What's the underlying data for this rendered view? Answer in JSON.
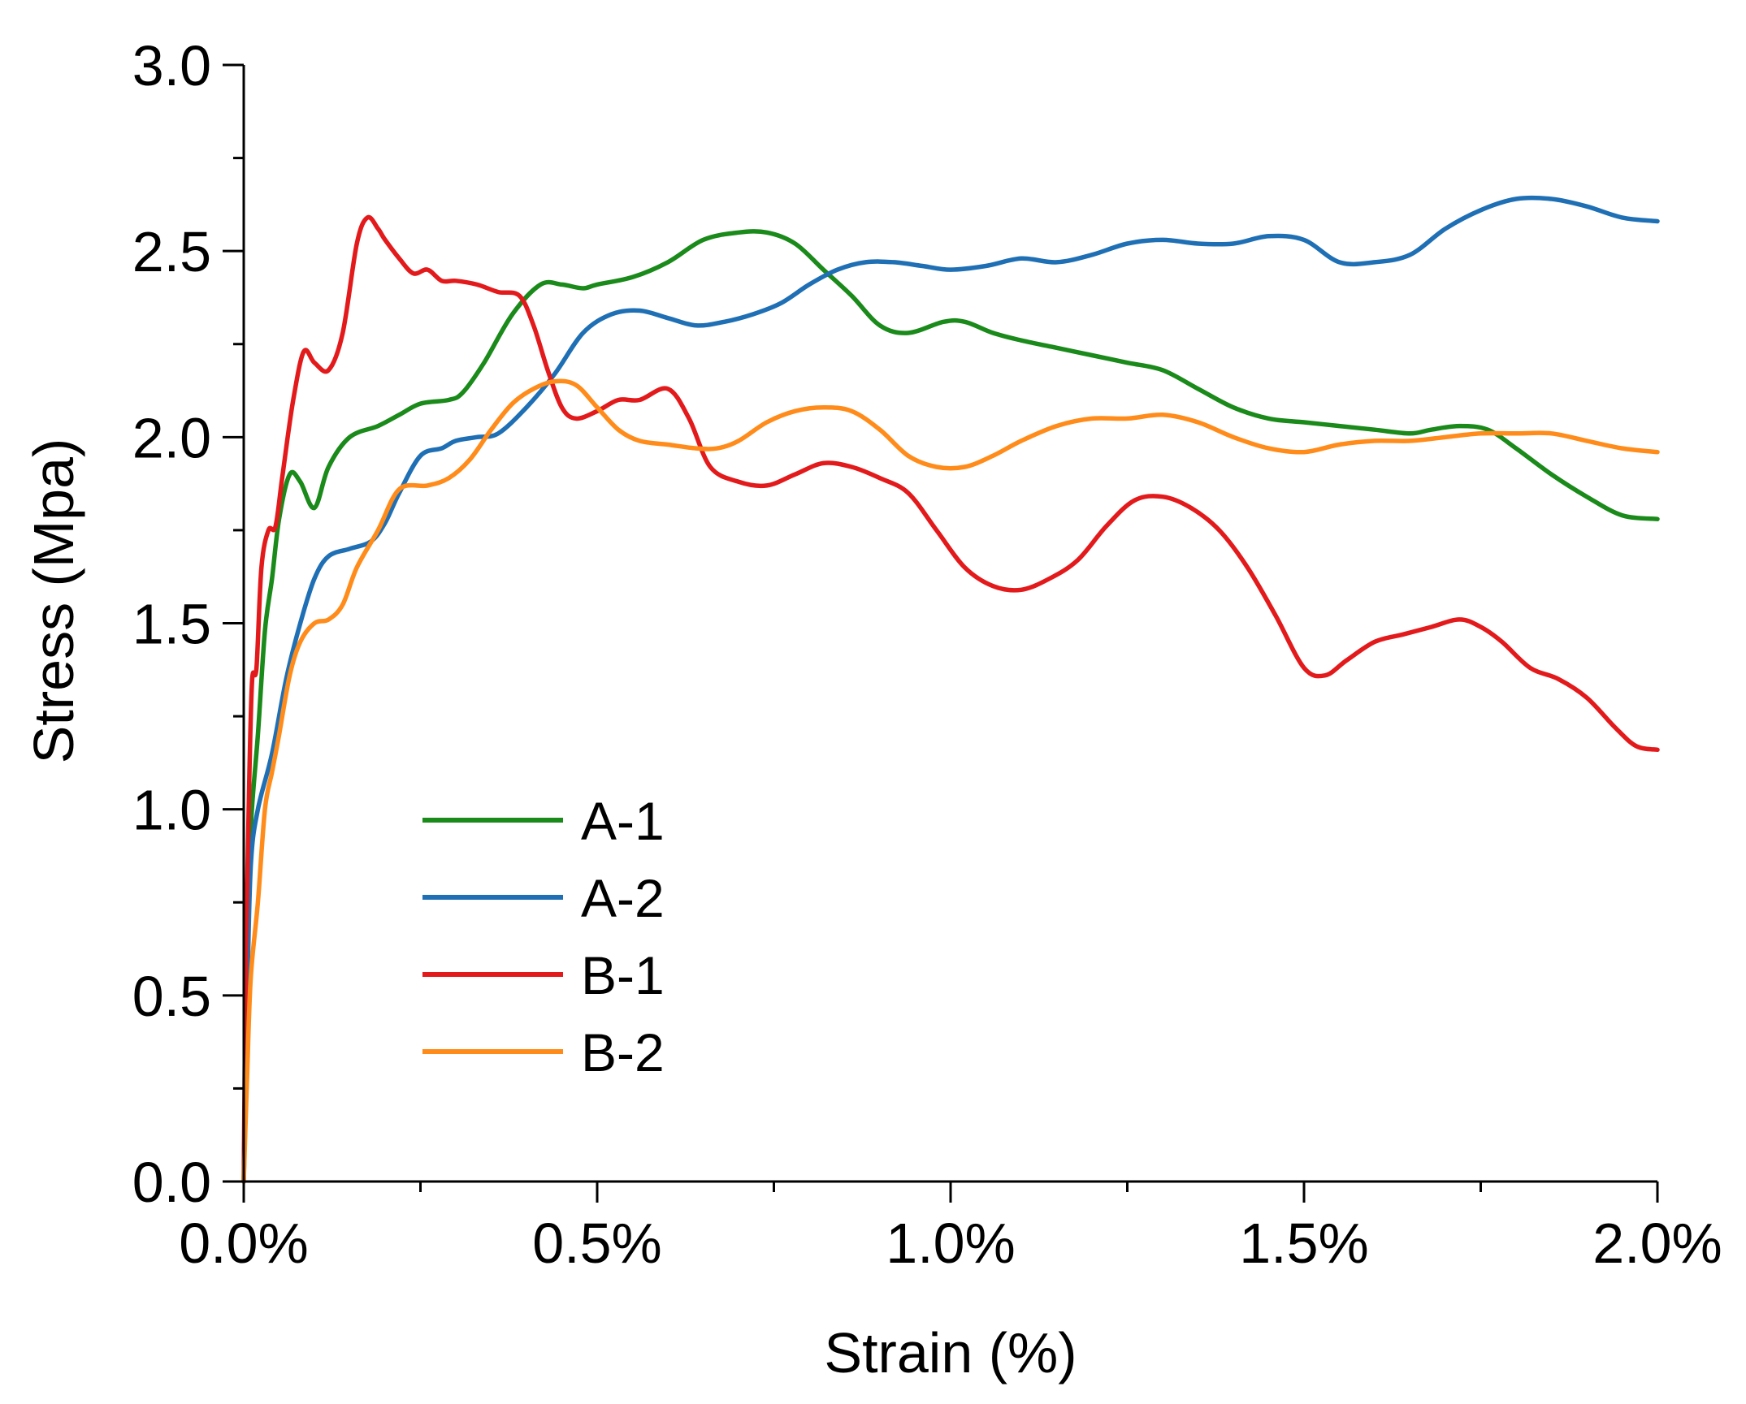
{
  "chart_data": {
    "type": "line",
    "title": "",
    "xlabel": "Strain (%)",
    "ylabel": "Stress (Mpa)",
    "xlim": [
      0,
      2.0
    ],
    "ylim": [
      0,
      3.0
    ],
    "x_ticks": [
      0,
      0.5,
      1.0,
      1.5,
      2.0
    ],
    "x_tick_labels": [
      "0.0%",
      "0.5%",
      "1.0%",
      "1.5%",
      "2.0%"
    ],
    "x_minor_ticks": [
      0.25,
      0.75,
      1.25,
      1.75
    ],
    "y_ticks": [
      0,
      0.5,
      1.0,
      1.5,
      2.0,
      2.5,
      3.0
    ],
    "y_tick_labels": [
      "0.0",
      "0.5",
      "1.0",
      "1.5",
      "2.0",
      "2.5",
      "3.0"
    ],
    "y_minor_ticks": [
      0.25,
      0.75,
      1.25,
      1.75,
      2.25,
      2.75
    ],
    "grid": false,
    "legend": {
      "position": "lower-left",
      "entries": [
        "A-1",
        "A-2",
        "B-1",
        "B-2"
      ]
    },
    "series": [
      {
        "name": "A-1",
        "color": "#1a8a1a",
        "points": [
          [
            0,
            0
          ],
          [
            0.005,
            0.6
          ],
          [
            0.01,
            0.95
          ],
          [
            0.02,
            1.2
          ],
          [
            0.03,
            1.48
          ],
          [
            0.04,
            1.62
          ],
          [
            0.05,
            1.78
          ],
          [
            0.065,
            1.9
          ],
          [
            0.08,
            1.88
          ],
          [
            0.1,
            1.81
          ],
          [
            0.12,
            1.92
          ],
          [
            0.15,
            2.0
          ],
          [
            0.19,
            2.03
          ],
          [
            0.22,
            2.06
          ],
          [
            0.25,
            2.09
          ],
          [
            0.29,
            2.1
          ],
          [
            0.31,
            2.12
          ],
          [
            0.34,
            2.2
          ],
          [
            0.38,
            2.33
          ],
          [
            0.42,
            2.41
          ],
          [
            0.45,
            2.41
          ],
          [
            0.48,
            2.4
          ],
          [
            0.5,
            2.41
          ],
          [
            0.55,
            2.43
          ],
          [
            0.6,
            2.47
          ],
          [
            0.65,
            2.53
          ],
          [
            0.7,
            2.55
          ],
          [
            0.74,
            2.55
          ],
          [
            0.78,
            2.52
          ],
          [
            0.82,
            2.45
          ],
          [
            0.86,
            2.38
          ],
          [
            0.9,
            2.3
          ],
          [
            0.94,
            2.28
          ],
          [
            0.99,
            2.31
          ],
          [
            1.02,
            2.31
          ],
          [
            1.06,
            2.28
          ],
          [
            1.1,
            2.26
          ],
          [
            1.15,
            2.24
          ],
          [
            1.2,
            2.22
          ],
          [
            1.25,
            2.2
          ],
          [
            1.3,
            2.18
          ],
          [
            1.35,
            2.13
          ],
          [
            1.4,
            2.08
          ],
          [
            1.45,
            2.05
          ],
          [
            1.5,
            2.04
          ],
          [
            1.55,
            2.03
          ],
          [
            1.6,
            2.02
          ],
          [
            1.65,
            2.01
          ],
          [
            1.68,
            2.02
          ],
          [
            1.72,
            2.03
          ],
          [
            1.76,
            2.02
          ],
          [
            1.8,
            1.97
          ],
          [
            1.85,
            1.9
          ],
          [
            1.9,
            1.84
          ],
          [
            1.95,
            1.79
          ],
          [
            2.0,
            1.78
          ]
        ]
      },
      {
        "name": "A-2",
        "color": "#1f6fb5",
        "points": [
          [
            0,
            0
          ],
          [
            0.005,
            0.5
          ],
          [
            0.01,
            0.85
          ],
          [
            0.02,
            1.0
          ],
          [
            0.04,
            1.15
          ],
          [
            0.06,
            1.35
          ],
          [
            0.08,
            1.5
          ],
          [
            0.1,
            1.62
          ],
          [
            0.12,
            1.68
          ],
          [
            0.15,
            1.7
          ],
          [
            0.18,
            1.72
          ],
          [
            0.2,
            1.77
          ],
          [
            0.22,
            1.85
          ],
          [
            0.25,
            1.95
          ],
          [
            0.28,
            1.97
          ],
          [
            0.3,
            1.99
          ],
          [
            0.33,
            2.0
          ],
          [
            0.36,
            2.01
          ],
          [
            0.4,
            2.08
          ],
          [
            0.44,
            2.17
          ],
          [
            0.48,
            2.28
          ],
          [
            0.52,
            2.33
          ],
          [
            0.56,
            2.34
          ],
          [
            0.6,
            2.32
          ],
          [
            0.64,
            2.3
          ],
          [
            0.68,
            2.31
          ],
          [
            0.72,
            2.33
          ],
          [
            0.76,
            2.36
          ],
          [
            0.8,
            2.41
          ],
          [
            0.84,
            2.45
          ],
          [
            0.88,
            2.47
          ],
          [
            0.92,
            2.47
          ],
          [
            0.96,
            2.46
          ],
          [
            1.0,
            2.45
          ],
          [
            1.05,
            2.46
          ],
          [
            1.1,
            2.48
          ],
          [
            1.15,
            2.47
          ],
          [
            1.2,
            2.49
          ],
          [
            1.25,
            2.52
          ],
          [
            1.3,
            2.53
          ],
          [
            1.35,
            2.52
          ],
          [
            1.4,
            2.52
          ],
          [
            1.45,
            2.54
          ],
          [
            1.5,
            2.53
          ],
          [
            1.55,
            2.47
          ],
          [
            1.6,
            2.47
          ],
          [
            1.65,
            2.49
          ],
          [
            1.7,
            2.56
          ],
          [
            1.75,
            2.61
          ],
          [
            1.8,
            2.64
          ],
          [
            1.85,
            2.64
          ],
          [
            1.9,
            2.62
          ],
          [
            1.95,
            2.59
          ],
          [
            2.0,
            2.58
          ]
        ]
      },
      {
        "name": "B-1",
        "color": "#e31a1c",
        "points": [
          [
            0,
            0
          ],
          [
            0.003,
            0.6
          ],
          [
            0.008,
            1.1
          ],
          [
            0.012,
            1.35
          ],
          [
            0.018,
            1.38
          ],
          [
            0.025,
            1.65
          ],
          [
            0.035,
            1.75
          ],
          [
            0.045,
            1.76
          ],
          [
            0.055,
            1.9
          ],
          [
            0.07,
            2.1
          ],
          [
            0.085,
            2.23
          ],
          [
            0.1,
            2.2
          ],
          [
            0.12,
            2.18
          ],
          [
            0.14,
            2.28
          ],
          [
            0.16,
            2.52
          ],
          [
            0.175,
            2.59
          ],
          [
            0.19,
            2.56
          ],
          [
            0.2,
            2.53
          ],
          [
            0.22,
            2.48
          ],
          [
            0.24,
            2.44
          ],
          [
            0.26,
            2.45
          ],
          [
            0.28,
            2.42
          ],
          [
            0.3,
            2.42
          ],
          [
            0.33,
            2.41
          ],
          [
            0.36,
            2.39
          ],
          [
            0.39,
            2.38
          ],
          [
            0.41,
            2.3
          ],
          [
            0.43,
            2.18
          ],
          [
            0.45,
            2.08
          ],
          [
            0.47,
            2.05
          ],
          [
            0.5,
            2.07
          ],
          [
            0.53,
            2.1
          ],
          [
            0.56,
            2.1
          ],
          [
            0.6,
            2.13
          ],
          [
            0.63,
            2.05
          ],
          [
            0.66,
            1.92
          ],
          [
            0.7,
            1.88
          ],
          [
            0.74,
            1.87
          ],
          [
            0.78,
            1.9
          ],
          [
            0.82,
            1.93
          ],
          [
            0.86,
            1.92
          ],
          [
            0.9,
            1.89
          ],
          [
            0.94,
            1.85
          ],
          [
            0.98,
            1.75
          ],
          [
            1.02,
            1.65
          ],
          [
            1.06,
            1.6
          ],
          [
            1.1,
            1.59
          ],
          [
            1.14,
            1.62
          ],
          [
            1.18,
            1.67
          ],
          [
            1.22,
            1.76
          ],
          [
            1.26,
            1.83
          ],
          [
            1.3,
            1.84
          ],
          [
            1.34,
            1.81
          ],
          [
            1.38,
            1.75
          ],
          [
            1.42,
            1.65
          ],
          [
            1.46,
            1.52
          ],
          [
            1.5,
            1.38
          ],
          [
            1.53,
            1.36
          ],
          [
            1.56,
            1.4
          ],
          [
            1.6,
            1.45
          ],
          [
            1.64,
            1.47
          ],
          [
            1.68,
            1.49
          ],
          [
            1.72,
            1.51
          ],
          [
            1.75,
            1.49
          ],
          [
            1.78,
            1.45
          ],
          [
            1.82,
            1.38
          ],
          [
            1.86,
            1.35
          ],
          [
            1.9,
            1.3
          ],
          [
            1.94,
            1.22
          ],
          [
            1.97,
            1.17
          ],
          [
            2.0,
            1.16
          ]
        ]
      },
      {
        "name": "B-2",
        "color": "#ff8c1a",
        "points": [
          [
            0,
            0
          ],
          [
            0.005,
            0.3
          ],
          [
            0.01,
            0.55
          ],
          [
            0.02,
            0.75
          ],
          [
            0.03,
            1.0
          ],
          [
            0.04,
            1.1
          ],
          [
            0.05,
            1.2
          ],
          [
            0.065,
            1.36
          ],
          [
            0.08,
            1.45
          ],
          [
            0.1,
            1.5
          ],
          [
            0.12,
            1.51
          ],
          [
            0.14,
            1.55
          ],
          [
            0.16,
            1.65
          ],
          [
            0.19,
            1.75
          ],
          [
            0.22,
            1.86
          ],
          [
            0.26,
            1.87
          ],
          [
            0.29,
            1.89
          ],
          [
            0.32,
            1.94
          ],
          [
            0.35,
            2.02
          ],
          [
            0.38,
            2.09
          ],
          [
            0.41,
            2.13
          ],
          [
            0.44,
            2.15
          ],
          [
            0.47,
            2.14
          ],
          [
            0.5,
            2.08
          ],
          [
            0.53,
            2.02
          ],
          [
            0.56,
            1.99
          ],
          [
            0.6,
            1.98
          ],
          [
            0.64,
            1.97
          ],
          [
            0.67,
            1.97
          ],
          [
            0.7,
            1.99
          ],
          [
            0.74,
            2.04
          ],
          [
            0.78,
            2.07
          ],
          [
            0.82,
            2.08
          ],
          [
            0.86,
            2.07
          ],
          [
            0.9,
            2.02
          ],
          [
            0.94,
            1.95
          ],
          [
            0.98,
            1.92
          ],
          [
            1.02,
            1.92
          ],
          [
            1.06,
            1.95
          ],
          [
            1.1,
            1.99
          ],
          [
            1.15,
            2.03
          ],
          [
            1.2,
            2.05
          ],
          [
            1.25,
            2.05
          ],
          [
            1.3,
            2.06
          ],
          [
            1.35,
            2.04
          ],
          [
            1.4,
            2.0
          ],
          [
            1.45,
            1.97
          ],
          [
            1.5,
            1.96
          ],
          [
            1.55,
            1.98
          ],
          [
            1.6,
            1.99
          ],
          [
            1.65,
            1.99
          ],
          [
            1.7,
            2.0
          ],
          [
            1.75,
            2.01
          ],
          [
            1.8,
            2.01
          ],
          [
            1.85,
            2.01
          ],
          [
            1.9,
            1.99
          ],
          [
            1.95,
            1.97
          ],
          [
            2.0,
            1.96
          ]
        ]
      }
    ]
  }
}
